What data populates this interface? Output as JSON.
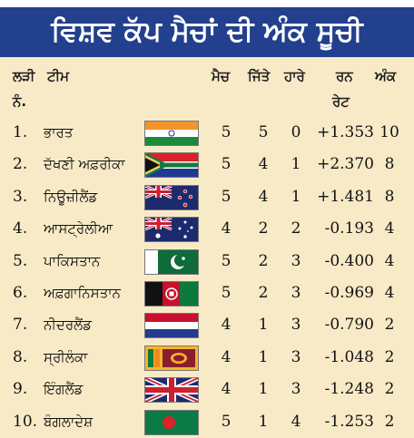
{
  "banner_title": "ਵਿਸ਼ਵ ਕੱਪ ਮੈਚਾਂ ਦੀ ਅੰਕ ਸੂਚੀ",
  "header": {
    "rank": "ਲੜੀ",
    "rank2": "ਨੰ.",
    "team": "ਟੀਮ",
    "matches": "ਮੈਚ",
    "won": "ਜਿੱਤੇ",
    "lost": "ਹਾਰੇ",
    "run_rate_1": "ਰਨ",
    "run_rate_2": "ਰੇਟ",
    "points": "ਅੰਕ"
  },
  "rows": [
    {
      "rank": "1.",
      "team": "ਭਾਰਤ",
      "matches": "5",
      "won": "5",
      "lost": "0",
      "nrr": "+1.353",
      "points": "10",
      "flag": "india"
    },
    {
      "rank": "2.",
      "team": "ਦੱਖਣੀ ਅਫ਼ਰੀਕਾ",
      "matches": "5",
      "won": "4",
      "lost": "1",
      "nrr": "+2.370",
      "points": "8",
      "flag": "south-africa"
    },
    {
      "rank": "3.",
      "team": "ਨਿਊਜ਼ੀਲੈਂਡ",
      "matches": "5",
      "won": "4",
      "lost": "1",
      "nrr": "+1.481",
      "points": "8",
      "flag": "new-zealand"
    },
    {
      "rank": "4.",
      "team": "ਆਸਟ੍ਰੇਲੀਆ",
      "matches": "4",
      "won": "2",
      "lost": "2",
      "nrr": "-0.193",
      "points": "4",
      "flag": "australia"
    },
    {
      "rank": "5.",
      "team": "ਪਾਕਿਸਤਾਨ",
      "matches": "5",
      "won": "2",
      "lost": "3",
      "nrr": "-0.400",
      "points": "4",
      "flag": "pakistan"
    },
    {
      "rank": "6.",
      "team": "ਅਫ਼ਗਾਨਿਸਤਾਨ",
      "matches": "5",
      "won": "2",
      "lost": "3",
      "nrr": "-0.969",
      "points": "4",
      "flag": "afghanistan"
    },
    {
      "rank": "7.",
      "team": "ਨੀਦਰਲੈਂਡ",
      "matches": "4",
      "won": "1",
      "lost": "3",
      "nrr": "-0.790",
      "points": "2",
      "flag": "netherlands"
    },
    {
      "rank": "8.",
      "team": "ਸ੍ਰੀਲੰਕਾ",
      "matches": "4",
      "won": "1",
      "lost": "3",
      "nrr": "-1.048",
      "points": "2",
      "flag": "sri-lanka"
    },
    {
      "rank": "9.",
      "team": "ਇੰਗਲੈਂਡ",
      "matches": "4",
      "won": "1",
      "lost": "3",
      "nrr": "-1.248",
      "points": "2",
      "flag": "england"
    },
    {
      "rank": "10.",
      "team": "ਬੰਗਲਾਦੇਸ਼",
      "matches": "5",
      "won": "1",
      "lost": "4",
      "nrr": "-1.253",
      "points": "2",
      "flag": "bangladesh"
    }
  ]
}
